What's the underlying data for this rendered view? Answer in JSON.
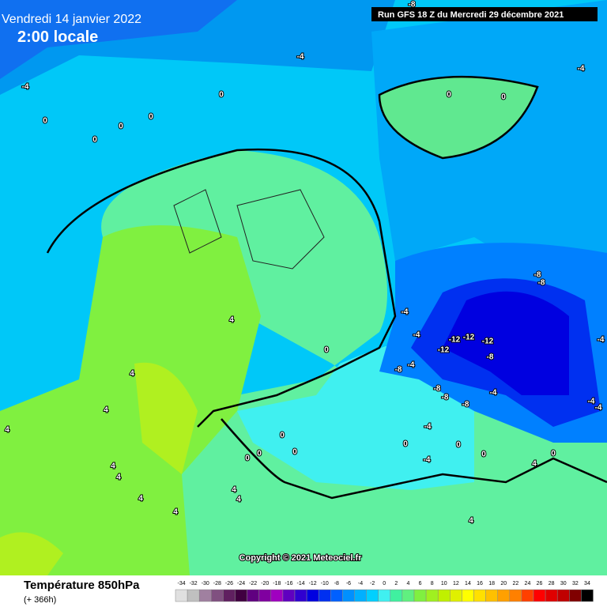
{
  "header": {
    "date": "Vendredi 14 janvier 2022",
    "time": "2:00 locale",
    "run": "Run GFS 18 Z du Mercredi 29 décembre 2021"
  },
  "copyright": "Copyright © 2021 Meteociel.fr",
  "legend": {
    "title": "Température 850hPa",
    "lead": "(+ 366h)",
    "scale": [
      -34,
      -32,
      -30,
      -28,
      -26,
      -24,
      -22,
      -20,
      -18,
      -16,
      -14,
      -12,
      -10,
      -8,
      -6,
      -4,
      -2,
      0,
      2,
      4,
      6,
      8,
      10,
      12,
      14,
      16,
      18,
      20,
      22,
      24,
      26,
      28,
      30,
      32,
      34
    ],
    "colors": [
      "#e0e0e0",
      "#c0c0c0",
      "#a080a0",
      "#805080",
      "#602060",
      "#400040",
      "#600080",
      "#8000a0",
      "#a000c0",
      "#6000c0",
      "#3000d0",
      "#0000e0",
      "#0030f0",
      "#0060ff",
      "#0090ff",
      "#00b0ff",
      "#00d0ff",
      "#40f0f0",
      "#40f0a0",
      "#60f080",
      "#80f040",
      "#a0f020",
      "#c0f000",
      "#e0f000",
      "#ffff00",
      "#ffe000",
      "#ffc000",
      "#ffa000",
      "#ff8000",
      "#ff4000",
      "#ff0000",
      "#e00000",
      "#c00000",
      "#800000",
      "#000000"
    ]
  },
  "contour_labels": [
    -8,
    -4,
    -4,
    -4,
    0,
    0,
    0,
    0,
    0,
    0,
    0,
    -8,
    -8,
    -4,
    -4,
    -12,
    -12,
    -12,
    -12,
    -8,
    -4,
    -8,
    -8,
    -8,
    -4,
    -8,
    -4,
    -4,
    -4,
    4,
    0,
    4,
    4,
    4,
    0,
    0,
    0,
    0,
    4,
    4,
    4,
    4,
    4,
    4,
    -4,
    -4,
    0,
    0,
    0,
    0,
    4,
    4
  ]
}
